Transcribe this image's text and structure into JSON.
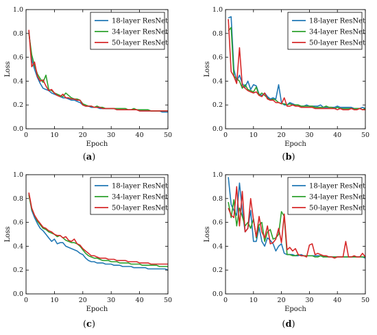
{
  "colors": {
    "series": [
      "#1f77b4",
      "#2ca02c",
      "#d62728"
    ],
    "axis": "#000000",
    "legend_border": "#000000"
  },
  "chart_data": [
    {
      "type": "line",
      "caption": "a",
      "xlabel": "Epoch",
      "ylabel": "Loss",
      "xlim": [
        0,
        50
      ],
      "ylim": [
        0,
        1.0
      ],
      "xticks": [
        0,
        10,
        20,
        30,
        40,
        50
      ],
      "yticks": [
        0,
        0.2,
        0.4,
        0.6,
        0.8,
        1.0
      ],
      "ytick_labels": [
        "0.0",
        "0.2",
        "0.4",
        "0.6",
        "0.8",
        "1.0"
      ],
      "grid": false,
      "legend": "top-right",
      "x": [
        1,
        2,
        3,
        4,
        5,
        6,
        7,
        8,
        9,
        10,
        11,
        12,
        13,
        14,
        15,
        16,
        17,
        18,
        19,
        20,
        21,
        22,
        23,
        24,
        25,
        26,
        27,
        28,
        29,
        30,
        31,
        32,
        33,
        34,
        35,
        36,
        37,
        38,
        39,
        40,
        41,
        42,
        43,
        44,
        45,
        46,
        47,
        48,
        49,
        50
      ],
      "series": [
        {
          "name": "18-layer ResNet",
          "values": [
            0.82,
            0.58,
            0.5,
            0.43,
            0.38,
            0.34,
            0.33,
            0.32,
            0.3,
            0.29,
            0.28,
            0.27,
            0.26,
            0.26,
            0.25,
            0.24,
            0.24,
            0.23,
            0.22,
            0.2,
            0.19,
            0.19,
            0.18,
            0.18,
            0.18,
            0.17,
            0.17,
            0.17,
            0.17,
            0.17,
            0.17,
            0.16,
            0.16,
            0.16,
            0.16,
            0.16,
            0.16,
            0.16,
            0.16,
            0.15,
            0.15,
            0.15,
            0.15,
            0.15,
            0.15,
            0.15,
            0.15,
            0.14,
            0.14,
            0.14
          ]
        },
        {
          "name": "34-layer ResNet",
          "values": [
            0.8,
            0.62,
            0.53,
            0.46,
            0.42,
            0.39,
            0.45,
            0.33,
            0.32,
            0.3,
            0.29,
            0.28,
            0.27,
            0.3,
            0.28,
            0.26,
            0.25,
            0.25,
            0.24,
            0.21,
            0.2,
            0.19,
            0.19,
            0.18,
            0.19,
            0.18,
            0.18,
            0.17,
            0.17,
            0.17,
            0.17,
            0.17,
            0.17,
            0.17,
            0.17,
            0.16,
            0.16,
            0.17,
            0.16,
            0.16,
            0.16,
            0.16,
            0.16,
            0.15,
            0.15,
            0.15,
            0.15,
            0.15,
            0.15,
            0.15
          ]
        },
        {
          "name": "50-layer ResNet",
          "values": [
            0.83,
            0.52,
            0.56,
            0.44,
            0.4,
            0.41,
            0.36,
            0.32,
            0.33,
            0.3,
            0.28,
            0.27,
            0.29,
            0.26,
            0.26,
            0.25,
            0.25,
            0.24,
            0.24,
            0.2,
            0.19,
            0.19,
            0.19,
            0.18,
            0.18,
            0.18,
            0.17,
            0.17,
            0.17,
            0.17,
            0.17,
            0.16,
            0.16,
            0.16,
            0.16,
            0.16,
            0.16,
            0.16,
            0.16,
            0.15,
            0.15,
            0.15,
            0.15,
            0.15,
            0.15,
            0.15,
            0.15,
            0.15,
            0.15,
            0.15
          ]
        }
      ]
    },
    {
      "type": "line",
      "caption": "b",
      "xlabel": "Epoch",
      "ylabel": "Loss",
      "xlim": [
        0,
        50
      ],
      "ylim": [
        0,
        1.0
      ],
      "xticks": [
        0,
        10,
        20,
        30,
        40,
        50
      ],
      "yticks": [
        0,
        0.2,
        0.4,
        0.6,
        0.8,
        1.0
      ],
      "ytick_labels": [
        "0.0",
        "0.2",
        "0.4",
        "0.6",
        "0.8",
        "1.0"
      ],
      "grid": false,
      "legend": "top-right",
      "x": [
        1,
        2,
        3,
        4,
        5,
        6,
        7,
        8,
        9,
        10,
        11,
        12,
        13,
        14,
        15,
        16,
        17,
        18,
        19,
        20,
        21,
        22,
        23,
        24,
        25,
        26,
        27,
        28,
        29,
        30,
        31,
        32,
        33,
        34,
        35,
        36,
        37,
        38,
        39,
        40,
        41,
        42,
        43,
        44,
        45,
        46,
        47,
        48,
        49,
        50
      ],
      "series": [
        {
          "name": "18-layer ResNet",
          "values": [
            0.93,
            0.94,
            0.5,
            0.4,
            0.45,
            0.38,
            0.35,
            0.4,
            0.33,
            0.37,
            0.36,
            0.29,
            0.28,
            0.3,
            0.27,
            0.25,
            0.26,
            0.25,
            0.37,
            0.22,
            0.2,
            0.2,
            0.22,
            0.21,
            0.2,
            0.2,
            0.19,
            0.19,
            0.2,
            0.19,
            0.19,
            0.19,
            0.19,
            0.2,
            0.18,
            0.18,
            0.18,
            0.18,
            0.18,
            0.19,
            0.18,
            0.18,
            0.18,
            0.18,
            0.18,
            0.17,
            0.17,
            0.17,
            0.18,
            0.17
          ]
        },
        {
          "name": "34-layer ResNet",
          "values": [
            0.82,
            0.85,
            0.44,
            0.42,
            0.4,
            0.34,
            0.37,
            0.33,
            0.32,
            0.31,
            0.35,
            0.28,
            0.3,
            0.28,
            0.26,
            0.24,
            0.25,
            0.24,
            0.22,
            0.21,
            0.21,
            0.2,
            0.21,
            0.2,
            0.2,
            0.2,
            0.19,
            0.19,
            0.19,
            0.19,
            0.19,
            0.18,
            0.18,
            0.18,
            0.18,
            0.19,
            0.18,
            0.18,
            0.17,
            0.18,
            0.17,
            0.17,
            0.17,
            0.17,
            0.17,
            0.17,
            0.17,
            0.17,
            0.16,
            0.17
          ]
        },
        {
          "name": "50-layer ResNet",
          "values": [
            0.92,
            0.48,
            0.44,
            0.38,
            0.68,
            0.36,
            0.34,
            0.32,
            0.31,
            0.3,
            0.31,
            0.28,
            0.27,
            0.3,
            0.25,
            0.24,
            0.24,
            0.22,
            0.22,
            0.21,
            0.26,
            0.19,
            0.19,
            0.2,
            0.19,
            0.19,
            0.18,
            0.18,
            0.18,
            0.18,
            0.18,
            0.17,
            0.17,
            0.17,
            0.17,
            0.17,
            0.17,
            0.17,
            0.17,
            0.16,
            0.17,
            0.16,
            0.16,
            0.16,
            0.17,
            0.16,
            0.16,
            0.17,
            0.16,
            0.16
          ]
        }
      ]
    },
    {
      "type": "line",
      "caption": "c",
      "xlabel": "Epoch",
      "ylabel": "Loss",
      "xlim": [
        0,
        50
      ],
      "ylim": [
        0,
        1.0
      ],
      "xticks": [
        0,
        10,
        20,
        30,
        40,
        50
      ],
      "yticks": [
        0,
        0.2,
        0.4,
        0.6,
        0.8,
        1.0
      ],
      "ytick_labels": [
        "0.0",
        "0.2",
        "0.4",
        "0.6",
        "0.8",
        "1.0"
      ],
      "grid": false,
      "legend": "top-right",
      "x": [
        1,
        2,
        3,
        4,
        5,
        6,
        7,
        8,
        9,
        10,
        11,
        12,
        13,
        14,
        15,
        16,
        17,
        18,
        19,
        20,
        21,
        22,
        23,
        24,
        25,
        26,
        27,
        28,
        29,
        30,
        31,
        32,
        33,
        34,
        35,
        36,
        37,
        38,
        39,
        40,
        41,
        42,
        43,
        44,
        45,
        46,
        47,
        48,
        49,
        50
      ],
      "series": [
        {
          "name": "18-layer ResNet",
          "values": [
            0.84,
            0.7,
            0.64,
            0.59,
            0.55,
            0.53,
            0.5,
            0.47,
            0.44,
            0.46,
            0.42,
            0.43,
            0.43,
            0.4,
            0.39,
            0.38,
            0.37,
            0.36,
            0.34,
            0.33,
            0.3,
            0.28,
            0.27,
            0.27,
            0.26,
            0.26,
            0.26,
            0.25,
            0.25,
            0.25,
            0.24,
            0.24,
            0.24,
            0.23,
            0.23,
            0.23,
            0.23,
            0.22,
            0.22,
            0.22,
            0.22,
            0.22,
            0.21,
            0.21,
            0.21,
            0.21,
            0.21,
            0.21,
            0.21,
            0.2
          ]
        },
        {
          "name": "34-layer ResNet",
          "values": [
            0.83,
            0.71,
            0.66,
            0.61,
            0.58,
            0.55,
            0.54,
            0.52,
            0.51,
            0.5,
            0.48,
            0.49,
            0.47,
            0.45,
            0.44,
            0.43,
            0.43,
            0.42,
            0.4,
            0.37,
            0.34,
            0.32,
            0.31,
            0.3,
            0.3,
            0.29,
            0.28,
            0.28,
            0.28,
            0.27,
            0.27,
            0.27,
            0.26,
            0.26,
            0.26,
            0.26,
            0.25,
            0.25,
            0.25,
            0.25,
            0.24,
            0.24,
            0.24,
            0.24,
            0.24,
            0.24,
            0.23,
            0.23,
            0.23,
            0.23
          ]
        },
        {
          "name": "50-layer ResNet",
          "values": [
            0.85,
            0.72,
            0.66,
            0.62,
            0.59,
            0.56,
            0.55,
            0.53,
            0.52,
            0.5,
            0.49,
            0.49,
            0.47,
            0.48,
            0.45,
            0.44,
            0.46,
            0.42,
            0.41,
            0.38,
            0.36,
            0.34,
            0.32,
            0.32,
            0.31,
            0.3,
            0.3,
            0.3,
            0.29,
            0.29,
            0.29,
            0.28,
            0.28,
            0.28,
            0.28,
            0.27,
            0.27,
            0.27,
            0.27,
            0.26,
            0.26,
            0.26,
            0.26,
            0.25,
            0.25,
            0.25,
            0.25,
            0.25,
            0.25,
            0.25
          ]
        }
      ]
    },
    {
      "type": "line",
      "caption": "d",
      "xlabel": "Epoch",
      "ylabel": "Loss",
      "xlim": [
        0,
        50
      ],
      "ylim": [
        0,
        1.0
      ],
      "xticks": [
        0,
        10,
        20,
        30,
        40,
        50
      ],
      "yticks": [
        0,
        0.2,
        0.4,
        0.6,
        0.8,
        1.0
      ],
      "ytick_labels": [
        "0.0",
        "0.2",
        "0.4",
        "0.6",
        "0.8",
        "1.0"
      ],
      "grid": false,
      "legend": "top-right",
      "x": [
        1,
        2,
        3,
        4,
        5,
        6,
        7,
        8,
        9,
        10,
        11,
        12,
        13,
        14,
        15,
        16,
        17,
        18,
        19,
        20,
        21,
        22,
        23,
        24,
        25,
        26,
        27,
        28,
        29,
        30,
        31,
        32,
        33,
        34,
        35,
        36,
        37,
        38,
        39,
        40,
        41,
        42,
        43,
        44,
        45,
        46,
        47,
        48,
        49,
        50
      ],
      "series": [
        {
          "name": "18-layer ResNet",
          "values": [
            0.98,
            0.75,
            0.7,
            0.66,
            0.93,
            0.7,
            0.52,
            0.55,
            0.7,
            0.44,
            0.44,
            0.56,
            0.44,
            0.4,
            0.47,
            0.45,
            0.42,
            0.36,
            0.4,
            0.42,
            0.34,
            0.33,
            0.33,
            0.33,
            0.32,
            0.32,
            0.33,
            0.32,
            0.32,
            0.32,
            0.32,
            0.32,
            0.32,
            0.32,
            0.31,
            0.32,
            0.31,
            0.31,
            0.31,
            0.31,
            0.31,
            0.31,
            0.31,
            0.31,
            0.31,
            0.31,
            0.31,
            0.31,
            0.31,
            0.3
          ]
        },
        {
          "name": "34-layer ResNet",
          "values": [
            0.77,
            0.64,
            0.79,
            0.57,
            0.72,
            0.65,
            0.57,
            0.6,
            0.55,
            0.63,
            0.47,
            0.58,
            0.6,
            0.44,
            0.52,
            0.54,
            0.46,
            0.47,
            0.5,
            0.69,
            0.65,
            0.33,
            0.33,
            0.32,
            0.32,
            0.33,
            0.32,
            0.32,
            0.32,
            0.32,
            0.32,
            0.31,
            0.31,
            0.32,
            0.31,
            0.31,
            0.31,
            0.31,
            0.31,
            0.31,
            0.31,
            0.31,
            0.31,
            0.31,
            0.31,
            0.31,
            0.31,
            0.31,
            0.31,
            0.31
          ]
        },
        {
          "name": "50-layer ResNet",
          "values": [
            0.72,
            0.66,
            0.64,
            0.9,
            0.57,
            0.86,
            0.52,
            0.55,
            0.8,
            0.62,
            0.48,
            0.65,
            0.52,
            0.47,
            0.57,
            0.42,
            0.43,
            0.46,
            0.55,
            0.43,
            0.67,
            0.37,
            0.39,
            0.36,
            0.38,
            0.33,
            0.32,
            0.32,
            0.31,
            0.41,
            0.42,
            0.33,
            0.34,
            0.33,
            0.32,
            0.32,
            0.31,
            0.31,
            0.3,
            0.31,
            0.31,
            0.31,
            0.44,
            0.31,
            0.31,
            0.32,
            0.31,
            0.31,
            0.34,
            0.31
          ]
        }
      ]
    }
  ]
}
